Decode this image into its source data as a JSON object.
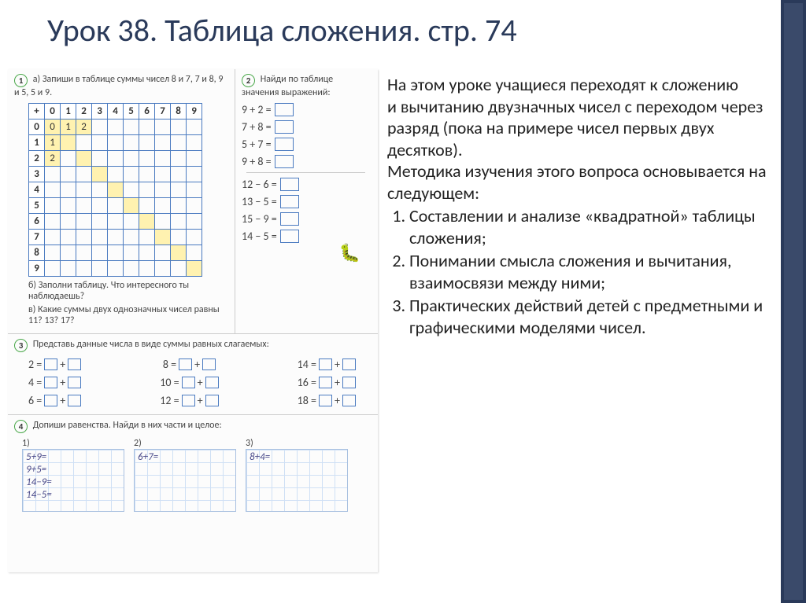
{
  "title": "Урок 38. Таблица сложения.  стр. 74",
  "worksheet": {
    "task1": {
      "num": "1",
      "label_a": "а) Запиши в таблице суммы чисел 8 и 7, 7 и 8, 9 и 5, 5 и 9.",
      "label_b": "б) Заполни таблицу. Что интересного ты наблюдаешь?",
      "label_c": "в) Какие суммы двух однозначных чисел равны 11? 13? 17?",
      "table_header_sym": "+",
      "cols": [
        "0",
        "1",
        "2",
        "3",
        "4",
        "5",
        "6",
        "7",
        "8",
        "9"
      ],
      "rows": [
        "0",
        "1",
        "2",
        "3",
        "4",
        "5",
        "6",
        "7",
        "8",
        "9"
      ],
      "prefilled": {
        "r0c0": "0",
        "r0c1": "1",
        "r0c2": "2",
        "r1c0": "1",
        "r2c0": "2"
      }
    },
    "task2": {
      "num": "2",
      "label": "Найди по таблице значения выражений:",
      "add": [
        "9 + 2 =",
        "7 + 8 =",
        "5 + 7 =",
        "9 + 8 ="
      ],
      "sub": [
        "12 − 6 =",
        "13 − 5 =",
        "15 − 9 =",
        "14 − 5 ="
      ]
    },
    "task3": {
      "num": "3",
      "label": "Представь данные числа в виде суммы равных слагаемых:",
      "col1": [
        "2 =",
        "4 =",
        "6 ="
      ],
      "col2": [
        "8 =",
        "10 =",
        "12 ="
      ],
      "col3": [
        "14 =",
        "16 =",
        "18 ="
      ]
    },
    "task4": {
      "num": "4",
      "label": "Допиши равенства. Найди в них части и целое:",
      "p1_num": "1)",
      "p1": [
        "5+9=",
        "9+5=",
        "14−9=",
        "14−5="
      ],
      "p2_num": "2)",
      "p2": [
        "6+7="
      ],
      "p3_num": "3)",
      "p3": [
        "8+4="
      ]
    }
  },
  "description": {
    "intro1": "На  этом уроке учащиеся переходят к сложению",
    "intro2": "и вычитанию двузначных чисел с переходом через разряд (пока на примере чисел первых двух десятков).",
    "intro3": "Методика изучения этого вопроса основывается на следующем:",
    "items": [
      "Составлении и анализе «квадратной» таблицы сложения;",
      "Понимании смысла сложения и вычитания, взаимосвязи между ними;",
      "Практических действий детей с предметными и графическими моделями чисел."
    ]
  },
  "colors": {
    "accent": "#2a3a5a",
    "table_border": "#4a7ac0",
    "diag_fill": "#fff2b0",
    "circle_border": "#4aa84a"
  }
}
